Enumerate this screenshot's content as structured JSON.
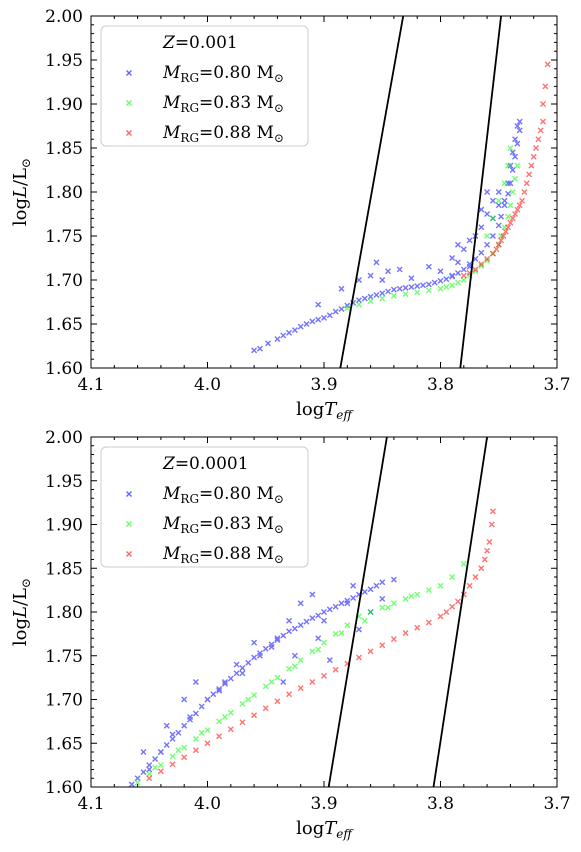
{
  "chart_data": [
    {
      "type": "scatter",
      "panel": "top",
      "xlabel": "logT_eff",
      "ylabel": "logL/L☉",
      "xlim": [
        4.1,
        3.7
      ],
      "ylim": [
        1.6,
        2.0
      ],
      "x_inverted": true,
      "xticks": [
        "4.1",
        "4.0",
        "3.9",
        "3.8",
        "3.7"
      ],
      "yticks": [
        "1.60",
        "1.65",
        "1.70",
        "1.75",
        "1.80",
        "1.85",
        "1.90",
        "1.95",
        "2.00"
      ],
      "legend": {
        "title": "Z=0.001",
        "title_var": "Z",
        "title_value": "=0.001",
        "placement": "top-left"
      },
      "lines": [
        {
          "name": "blue edge",
          "color": "#000000",
          "x": [
            3.886,
            3.832
          ],
          "y": [
            1.6,
            2.0
          ]
        },
        {
          "name": "red edge",
          "color": "#000000",
          "x": [
            3.783,
            3.748
          ],
          "y": [
            1.6,
            2.0
          ]
        }
      ],
      "series": [
        {
          "name": "M_RG=0.80 M☉",
          "mass": "=0.80 M",
          "color": "#0000ff",
          "x": [
            3.96,
            3.955,
            3.948,
            3.94,
            3.935,
            3.93,
            3.925,
            3.92,
            3.915,
            3.91,
            3.905,
            3.9,
            3.895,
            3.89,
            3.885,
            3.88,
            3.875,
            3.87,
            3.865,
            3.86,
            3.855,
            3.85,
            3.845,
            3.84,
            3.835,
            3.83,
            3.825,
            3.82,
            3.815,
            3.81,
            3.805,
            3.8,
            3.795,
            3.79,
            3.785,
            3.78,
            3.775,
            3.77,
            3.765,
            3.76,
            3.755,
            3.75,
            3.748,
            3.745,
            3.742,
            3.74,
            3.738,
            3.736,
            3.734,
            3.732,
            3.77,
            3.775,
            3.78,
            3.785,
            3.79,
            3.765,
            3.76,
            3.755,
            3.75,
            3.745,
            3.742,
            3.74,
            3.738,
            3.736,
            3.734,
            3.732,
            3.905,
            3.885,
            3.87,
            3.86,
            3.855,
            3.85,
            3.845,
            3.835,
            3.825,
            3.81,
            3.8,
            3.79,
            3.785,
            3.775,
            3.765,
            3.76,
            3.755,
            3.75
          ],
          "y": [
            1.62,
            1.622,
            1.628,
            1.633,
            1.637,
            1.64,
            1.643,
            1.647,
            1.65,
            1.653,
            1.655,
            1.657,
            1.66,
            1.664,
            1.667,
            1.671,
            1.674,
            1.677,
            1.679,
            1.681,
            1.683,
            1.685,
            1.687,
            1.689,
            1.69,
            1.691,
            1.692,
            1.693,
            1.694,
            1.695,
            1.697,
            1.699,
            1.701,
            1.704,
            1.708,
            1.712,
            1.718,
            1.724,
            1.731,
            1.74,
            1.75,
            1.762,
            1.772,
            1.785,
            1.798,
            1.81,
            1.825,
            1.84,
            1.855,
            1.87,
            1.75,
            1.745,
            1.735,
            1.72,
            1.705,
            1.76,
            1.775,
            1.79,
            1.8,
            1.79,
            1.81,
            1.83,
            1.845,
            1.86,
            1.875,
            1.88,
            1.672,
            1.69,
            1.7,
            1.705,
            1.72,
            1.7,
            1.71,
            1.712,
            1.702,
            1.715,
            1.71,
            1.725,
            1.74,
            1.715,
            1.78,
            1.8,
            1.77,
            1.785
          ]
        },
        {
          "name": "M_RG=0.83 M☉",
          "mass": "=0.83 M",
          "color": "#00ff00",
          "x": [
            3.88,
            3.87,
            3.86,
            3.85,
            3.84,
            3.83,
            3.82,
            3.81,
            3.8,
            3.795,
            3.79,
            3.785,
            3.78,
            3.775,
            3.77,
            3.765,
            3.76,
            3.755,
            3.75,
            3.748,
            3.745,
            3.742,
            3.74,
            3.738,
            3.736,
            3.734,
            3.76,
            3.755,
            3.75,
            3.745,
            3.742,
            3.74
          ],
          "y": [
            1.668,
            1.672,
            1.676,
            1.679,
            1.682,
            1.684,
            1.686,
            1.688,
            1.69,
            1.692,
            1.694,
            1.697,
            1.7,
            1.705,
            1.71,
            1.716,
            1.722,
            1.73,
            1.74,
            1.75,
            1.76,
            1.772,
            1.785,
            1.8,
            1.815,
            1.83,
            1.75,
            1.77,
            1.79,
            1.81,
            1.83,
            1.85
          ]
        },
        {
          "name": "M_RG=0.88 M☉",
          "mass": "=0.88 M",
          "color": "#ff0000",
          "x": [
            3.78,
            3.775,
            3.77,
            3.765,
            3.76,
            3.755,
            3.752,
            3.75,
            3.748,
            3.746,
            3.744,
            3.742,
            3.74,
            3.738,
            3.736,
            3.734,
            3.732,
            3.73,
            3.728,
            3.726,
            3.724,
            3.722,
            3.72,
            3.718,
            3.716,
            3.714,
            3.712,
            3.712,
            3.71,
            3.708
          ],
          "y": [
            1.705,
            1.708,
            1.712,
            1.718,
            1.724,
            1.73,
            1.735,
            1.74,
            1.745,
            1.75,
            1.755,
            1.76,
            1.765,
            1.77,
            1.775,
            1.78,
            1.785,
            1.79,
            1.8,
            1.81,
            1.82,
            1.83,
            1.84,
            1.85,
            1.86,
            1.87,
            1.88,
            1.9,
            1.92,
            1.945
          ]
        }
      ]
    },
    {
      "type": "scatter",
      "panel": "bottom",
      "xlabel": "logT_eff",
      "ylabel": "logL/L☉",
      "xlim": [
        4.1,
        3.7
      ],
      "ylim": [
        1.6,
        2.0
      ],
      "x_inverted": true,
      "xticks": [
        "4.1",
        "4.0",
        "3.9",
        "3.8",
        "3.7"
      ],
      "yticks": [
        "1.60",
        "1.65",
        "1.70",
        "1.75",
        "1.80",
        "1.85",
        "1.90",
        "1.95",
        "2.00"
      ],
      "legend": {
        "title": "Z=0.0001",
        "title_var": "Z",
        "title_value": "=0.0001",
        "placement": "top-left"
      },
      "lines": [
        {
          "name": "blue edge",
          "color": "#000000",
          "x": [
            3.896,
            3.846
          ],
          "y": [
            1.6,
            2.0
          ]
        },
        {
          "name": "red edge",
          "color": "#000000",
          "x": [
            3.806,
            3.76
          ],
          "y": [
            1.6,
            2.0
          ]
        }
      ],
      "series": [
        {
          "name": "M_RG=0.80 M☉",
          "mass": "=0.80 M",
          "color": "#0000ff",
          "x": [
            4.065,
            4.06,
            4.055,
            4.05,
            4.045,
            4.04,
            4.035,
            4.03,
            4.025,
            4.02,
            4.015,
            4.01,
            4.005,
            4.0,
            3.995,
            3.99,
            3.985,
            3.98,
            3.975,
            3.97,
            3.965,
            3.96,
            3.955,
            3.95,
            3.945,
            3.94,
            3.935,
            3.93,
            3.925,
            3.92,
            3.915,
            3.91,
            3.905,
            3.9,
            3.895,
            3.89,
            3.885,
            3.88,
            3.875,
            3.87,
            3.865,
            3.86,
            3.855,
            3.85,
            3.84,
            4.05,
            4.04,
            4.03,
            4.015,
            4.0,
            3.985,
            3.97,
            3.955,
            3.94,
            3.93,
            3.92,
            3.91,
            3.9,
            3.88,
            3.875,
            3.86,
            3.85,
            4.055,
            4.035,
            4.02,
            4.01,
            3.99,
            3.975,
            3.96,
            3.945,
            3.935,
            3.925,
            3.905,
            3.895,
            3.87
          ],
          "y": [
            1.603,
            1.61,
            1.617,
            1.625,
            1.632,
            1.64,
            1.648,
            1.655,
            1.662,
            1.67,
            1.677,
            1.684,
            1.692,
            1.7,
            1.706,
            1.712,
            1.718,
            1.724,
            1.73,
            1.736,
            1.742,
            1.748,
            1.753,
            1.758,
            1.763,
            1.768,
            1.773,
            1.778,
            1.781,
            1.785,
            1.789,
            1.793,
            1.796,
            1.8,
            1.803,
            1.806,
            1.81,
            1.813,
            1.816,
            1.82,
            1.823,
            1.826,
            1.83,
            1.834,
            1.837,
            1.62,
            1.64,
            1.66,
            1.68,
            1.7,
            1.72,
            1.73,
            1.75,
            1.77,
            1.79,
            1.81,
            1.82,
            1.79,
            1.81,
            1.83,
            1.8,
            1.815,
            1.64,
            1.67,
            1.7,
            1.72,
            1.71,
            1.74,
            1.765,
            1.76,
            1.72,
            1.75,
            1.77,
            1.745,
            1.78
          ]
        },
        {
          "name": "M_RG=0.83 M☉",
          "mass": "=0.83 M",
          "color": "#00ff00",
          "x": [
            4.06,
            4.05,
            4.04,
            4.03,
            4.02,
            4.01,
            4.0,
            3.99,
            3.98,
            3.97,
            3.96,
            3.95,
            3.94,
            3.93,
            3.92,
            3.91,
            3.9,
            3.89,
            3.88,
            3.87,
            3.86,
            3.85,
            3.84,
            3.83,
            3.82,
            3.81,
            3.8,
            3.79,
            3.78,
            4.045,
            4.025,
            4.005,
            3.985,
            3.965,
            3.945,
            3.925,
            3.905,
            3.885,
            3.865,
            3.845,
            3.825
          ],
          "y": [
            1.605,
            1.615,
            1.625,
            1.635,
            1.645,
            1.655,
            1.665,
            1.675,
            1.685,
            1.695,
            1.705,
            1.715,
            1.725,
            1.735,
            1.745,
            1.755,
            1.765,
            1.775,
            1.785,
            1.795,
            1.8,
            1.805,
            1.81,
            1.815,
            1.82,
            1.825,
            1.83,
            1.84,
            1.855,
            1.622,
            1.642,
            1.662,
            1.68,
            1.7,
            1.72,
            1.738,
            1.757,
            1.776,
            1.79,
            1.805,
            1.818
          ]
        },
        {
          "name": "M_RG=0.88 M☉",
          "mass": "=0.88 M",
          "color": "#ff0000",
          "x": [
            4.05,
            4.04,
            4.03,
            4.02,
            4.01,
            4.0,
            3.99,
            3.98,
            3.97,
            3.96,
            3.95,
            3.94,
            3.93,
            3.92,
            3.91,
            3.9,
            3.89,
            3.88,
            3.87,
            3.86,
            3.85,
            3.84,
            3.83,
            3.82,
            3.81,
            3.8,
            3.795,
            3.79,
            3.785,
            3.78,
            3.775,
            3.77,
            3.765,
            3.762,
            3.76,
            3.758,
            3.756,
            3.755
          ],
          "y": [
            1.61,
            1.618,
            1.626,
            1.634,
            1.642,
            1.65,
            1.658,
            1.666,
            1.674,
            1.682,
            1.69,
            1.698,
            1.706,
            1.713,
            1.72,
            1.727,
            1.734,
            1.741,
            1.748,
            1.755,
            1.762,
            1.769,
            1.776,
            1.782,
            1.788,
            1.795,
            1.8,
            1.806,
            1.812,
            1.82,
            1.83,
            1.84,
            1.85,
            1.86,
            1.87,
            1.88,
            1.9,
            1.915
          ]
        }
      ]
    }
  ]
}
